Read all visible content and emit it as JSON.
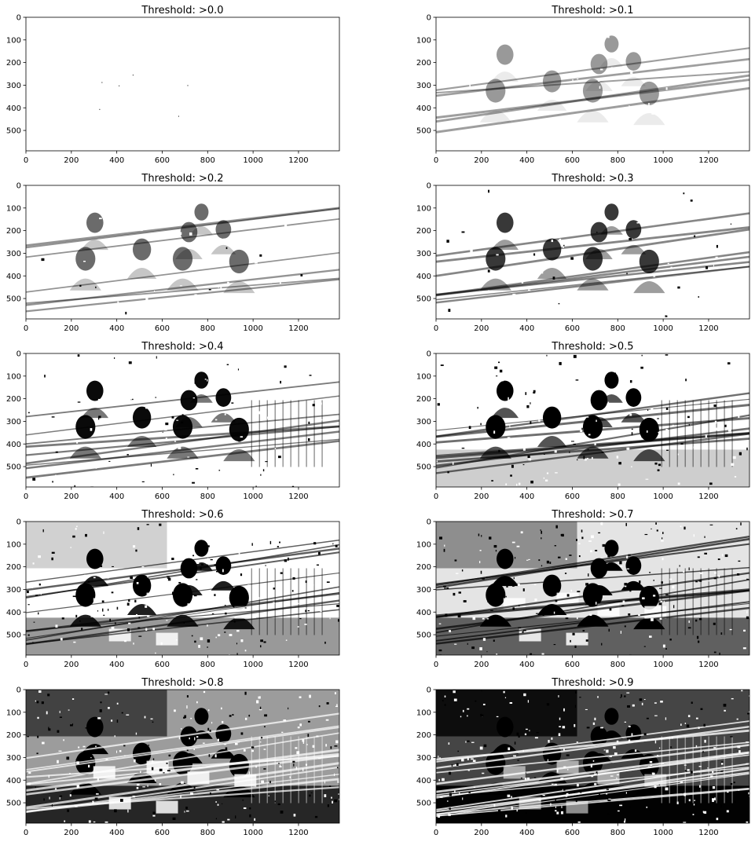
{
  "chart_data": [
    {
      "type": "image",
      "title": "Threshold: >0.0",
      "threshold": 0.0,
      "xlim": [
        0,
        1380
      ],
      "ylim": [
        590,
        0
      ],
      "xticks": [
        0,
        200,
        400,
        600,
        800,
        1000,
        1200
      ],
      "yticks": [
        0,
        100,
        200,
        300,
        400,
        500
      ],
      "dark_fraction": 0.0
    },
    {
      "type": "image",
      "title": "Threshold: >0.1",
      "threshold": 0.1,
      "xlim": [
        0,
        1380
      ],
      "ylim": [
        590,
        0
      ],
      "xticks": [
        0,
        200,
        400,
        600,
        800,
        1000,
        1200
      ],
      "yticks": [
        0,
        100,
        200,
        300,
        400,
        500
      ],
      "dark_fraction": 0.05
    },
    {
      "type": "image",
      "title": "Threshold: >0.2",
      "threshold": 0.2,
      "xlim": [
        0,
        1380
      ],
      "ylim": [
        590,
        0
      ],
      "xticks": [
        0,
        200,
        400,
        600,
        800,
        1000,
        1200
      ],
      "yticks": [
        0,
        100,
        200,
        300,
        400,
        500
      ],
      "dark_fraction": 0.14
    },
    {
      "type": "image",
      "title": "Threshold: >0.3",
      "threshold": 0.3,
      "xlim": [
        0,
        1380
      ],
      "ylim": [
        590,
        0
      ],
      "xticks": [
        0,
        200,
        400,
        600,
        800,
        1000,
        1200
      ],
      "yticks": [
        0,
        100,
        200,
        300,
        400,
        500
      ],
      "dark_fraction": 0.24
    },
    {
      "type": "image",
      "title": "Threshold: >0.4",
      "threshold": 0.4,
      "xlim": [
        0,
        1380
      ],
      "ylim": [
        590,
        0
      ],
      "xticks": [
        0,
        200,
        400,
        600,
        800,
        1000,
        1200
      ],
      "yticks": [
        0,
        100,
        200,
        300,
        400,
        500
      ],
      "dark_fraction": 0.33
    },
    {
      "type": "image",
      "title": "Threshold: >0.5",
      "threshold": 0.5,
      "xlim": [
        0,
        1380
      ],
      "ylim": [
        590,
        0
      ],
      "xticks": [
        0,
        200,
        400,
        600,
        800,
        1000,
        1200
      ],
      "yticks": [
        0,
        100,
        200,
        300,
        400,
        500
      ],
      "dark_fraction": 0.42
    },
    {
      "type": "image",
      "title": "Threshold: >0.6",
      "threshold": 0.6,
      "xlim": [
        0,
        1380
      ],
      "ylim": [
        590,
        0
      ],
      "xticks": [
        0,
        200,
        400,
        600,
        800,
        1000,
        1200
      ],
      "yticks": [
        0,
        100,
        200,
        300,
        400,
        500
      ],
      "dark_fraction": 0.55
    },
    {
      "type": "image",
      "title": "Threshold: >0.7",
      "threshold": 0.7,
      "xlim": [
        0,
        1380
      ],
      "ylim": [
        590,
        0
      ],
      "xticks": [
        0,
        200,
        400,
        600,
        800,
        1000,
        1200
      ],
      "yticks": [
        0,
        100,
        200,
        300,
        400,
        500
      ],
      "dark_fraction": 0.66
    },
    {
      "type": "image",
      "title": "Threshold: >0.8",
      "threshold": 0.8,
      "xlim": [
        0,
        1380
      ],
      "ylim": [
        590,
        0
      ],
      "xticks": [
        0,
        200,
        400,
        600,
        800,
        1000,
        1200
      ],
      "yticks": [
        0,
        100,
        200,
        300,
        400,
        500
      ],
      "dark_fraction": 0.77
    },
    {
      "type": "image",
      "title": "Threshold: >0.9",
      "threshold": 0.9,
      "xlim": [
        0,
        1380
      ],
      "ylim": [
        590,
        0
      ],
      "xticks": [
        0,
        200,
        400,
        600,
        800,
        1000,
        1200
      ],
      "yticks": [
        0,
        100,
        200,
        300,
        400,
        500
      ],
      "dark_fraction": 0.9
    }
  ]
}
